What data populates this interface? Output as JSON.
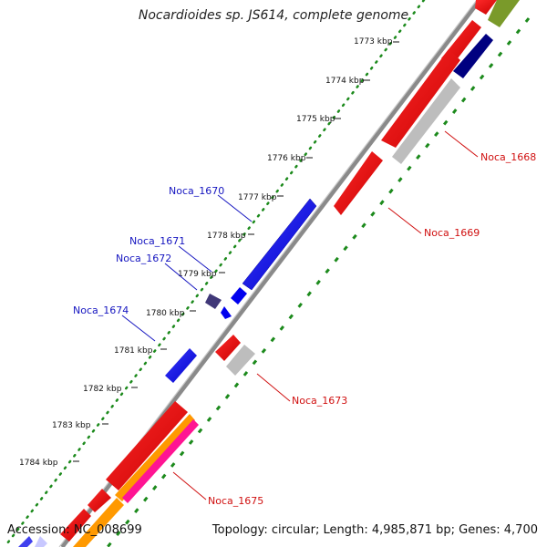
{
  "title": "Nocardioides sp. JS614, complete genome",
  "accession": "Accession: NC_008699",
  "summary": "Topology: circular; Length: 4,985,871 bp; Genes: 4,700",
  "colors": {
    "backbone": "#8a8a8a",
    "ruler_dots": "#1c8a1c",
    "forward_gene": "#0000ee",
    "reverse_gene": "#ee0000",
    "rna_gene": "#bdbdbd",
    "navy_gene": "#000080",
    "olive_gene": "#7a9a2a",
    "orange_gene": "#ff9900",
    "pink_gene": "#ff1493",
    "label_blue": "#1515c0",
    "label_red": "#d01010"
  },
  "ticks": [
    {
      "label": "1773 kbp"
    },
    {
      "label": "1774 kbp"
    },
    {
      "label": "1775 kbp"
    },
    {
      "label": "1776 kbp"
    },
    {
      "label": "1777 kbp"
    },
    {
      "label": "1778 kbp"
    },
    {
      "label": "1779 kbp"
    },
    {
      "label": "1780 kbp"
    },
    {
      "label": "1781 kbp"
    },
    {
      "label": "1782 kbp"
    },
    {
      "label": "1783 kbp"
    },
    {
      "label": "1784 kbp"
    }
  ],
  "gene_labels": {
    "noca_1670": "Noca_1670",
    "noca_1671": "Noca_1671",
    "noca_1672": "Noca_1672",
    "noca_1674": "Noca_1674",
    "noca_1668": "Noca_1668",
    "noca_1669": "Noca_1669",
    "noca_1673": "Noca_1673",
    "noca_1675": "Noca_1675"
  }
}
